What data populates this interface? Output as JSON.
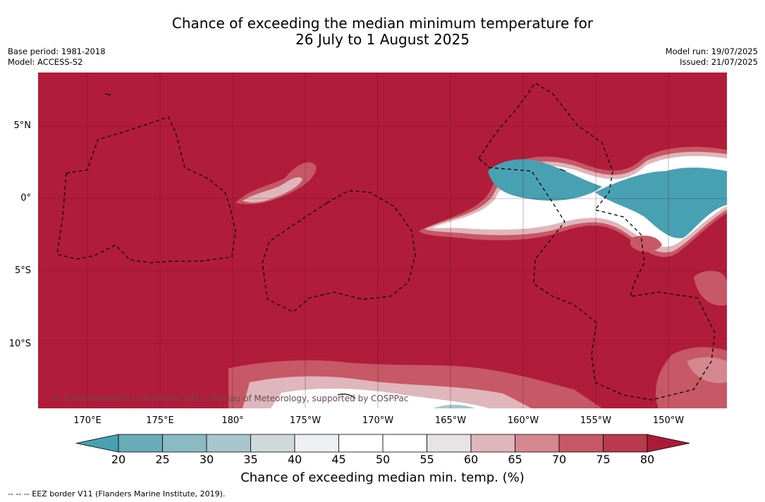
{
  "title": {
    "line1": "Chance of exceeding the median minimum temperature for",
    "line2": "26 July to 1 August 2025"
  },
  "meta": {
    "base_period": "Base period: 1981-2018",
    "model": "Model: ACCESS-S2",
    "model_run": "Model run: 19/07/2025",
    "issued": "Issued: 21/07/2025"
  },
  "map": {
    "background_color": "#b11c3a",
    "lat_labels": [
      "5°N",
      "0°",
      "5°S",
      "10°S"
    ],
    "lon_labels": [
      "170°E",
      "175°E",
      "180°",
      "175°W",
      "170°W",
      "165°W",
      "160°W",
      "155°W",
      "150°W"
    ],
    "copyright": "© Commonwealth of Australia 2025, Bureau of Meteorology, supported by COSPPac"
  },
  "colorbar": {
    "ticks": [
      "20",
      "25",
      "30",
      "35",
      "40",
      "45",
      "50",
      "55",
      "60",
      "65",
      "70",
      "75",
      "80"
    ],
    "colors": [
      "#48a1b2",
      "#6aabb9",
      "#8bbac4",
      "#a9c6cc",
      "#cfd9dc",
      "#edf1f3",
      "#ffffff",
      "#ffffff",
      "#e7e4e5",
      "#dfb6bc",
      "#d4878f",
      "#c75865",
      "#b83a4c",
      "#ad1a38"
    ],
    "title": "Chance of exceeding median min. temp. (%)"
  },
  "footnote": "--  --  -- EEZ border V11 (Flanders Marine Institute, 2019)."
}
